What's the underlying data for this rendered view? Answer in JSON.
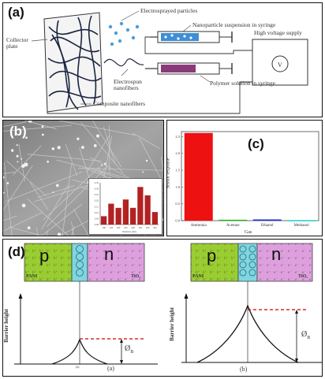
{
  "panel_a": {
    "letter": "(a)",
    "collector_plate": "Collector plate",
    "electrosprayed_particles": "Electrosprayed particles",
    "nanoparticle_suspension": "Nanoparticle suspension in syringe",
    "high_voltage_supply": "High voltage supply",
    "voltmeter_symbol": "V",
    "electrospun_nanofibers": "Electrospun nanofibers",
    "polymer_solution": "Polymer solution in syringe",
    "composite_nanofibers": "Composite nanofibers",
    "colors": {
      "particle": "#4a9fd8",
      "syringe_suspension": "#3d8fd6",
      "syringe_polymer": "#8a3a7a"
    }
  },
  "panel_b": {
    "letter": "(b)",
    "inset_histogram": {
      "type": "bar",
      "values": [
        2,
        5,
        4,
        6,
        4,
        9,
        7,
        3
      ],
      "ylim": [
        0,
        10
      ],
      "ytick_labels": [
        "0.35",
        "0.30",
        "0.25",
        "0.20",
        "0.15",
        "0.10",
        "0.05",
        "0.00"
      ],
      "xtick_labels": [
        "100",
        "150",
        "200",
        "250",
        "300",
        "350",
        "400",
        "450"
      ],
      "xlabel": "Diameter (nm)",
      "bar_color": "#b22222"
    }
  },
  "panel_c": {
    "letter": "(c)",
    "chart_data": {
      "type": "bar",
      "categories": [
        "Ammonia",
        "Acetone",
        "Ethanol",
        "Methanol"
      ],
      "values": [
        2.6,
        0.02,
        0.03,
        0.01
      ],
      "ylabel": "Sensor response",
      "xlabel": "Gas",
      "ylim": [
        0,
        2.6
      ],
      "yticks": [
        "2.5",
        "2.0",
        "1.5",
        "1.0",
        "0.5",
        "0.0"
      ],
      "colors": [
        "#ee1111",
        "#22aa22",
        "#2233cc",
        "#22cccc"
      ]
    }
  },
  "panel_d": {
    "letter": "(d)",
    "left": {
      "p_label": "p",
      "n_label": "n",
      "pani_label": "PANI",
      "tio2_label": "TiO₂",
      "barrier_label": "Barrier height",
      "phi_b": "Ø",
      "phi_sub": "B",
      "mark": "(a)",
      "small_mark": "(a)"
    },
    "right": {
      "p_label": "p",
      "n_label": "n",
      "pani_label": "PANI",
      "tio2_label": "TiO₂",
      "barrier_label": "Barrier height",
      "phi_b": "Ø",
      "phi_sub": "B",
      "mark": "(b)"
    },
    "colors": {
      "p_region": "#9acd32",
      "n_region": "#dda0dd",
      "junction": "#7fd6e0",
      "barrier_dash": "#cc0000"
    }
  }
}
